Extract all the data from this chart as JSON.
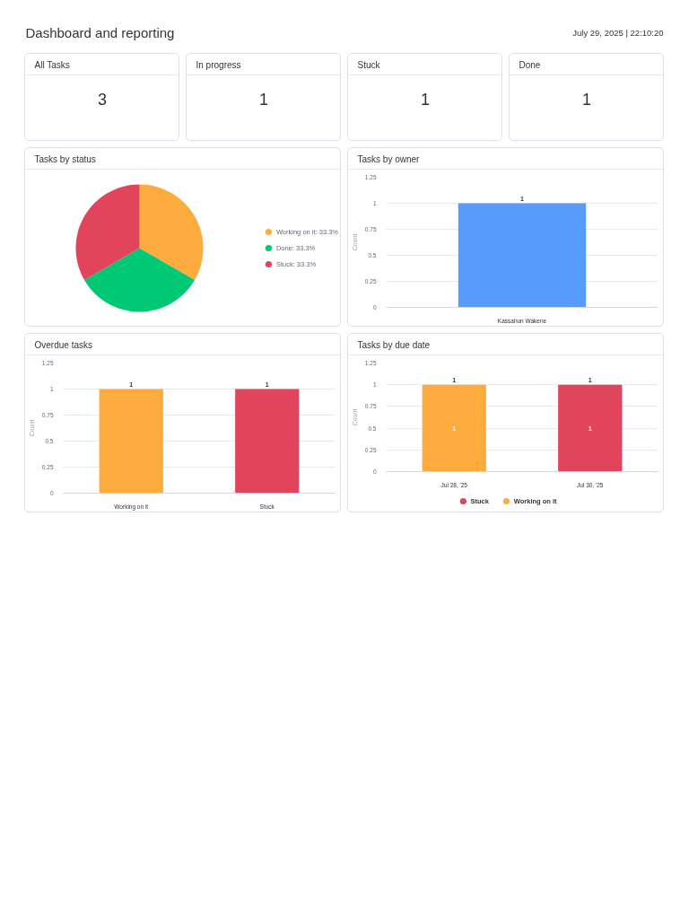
{
  "chart_data": [
    {
      "type": "other",
      "title": "Dashboard and reporting",
      "annotations": [
        "July 29, 2025 | 22:10:20"
      ]
    },
    {
      "type": "other",
      "title": "All Tasks",
      "annotations": [
        "3"
      ]
    },
    {
      "type": "other",
      "title": "In progress",
      "annotations": [
        "1"
      ]
    },
    {
      "type": "other",
      "title": "Stuck",
      "annotations": [
        "1"
      ]
    },
    {
      "type": "other",
      "title": "Done",
      "annotations": [
        "1"
      ]
    },
    {
      "type": "pie",
      "title": "Tasks by status",
      "categories": [
        "Working on it: 33.3%",
        "Done: 33.3%",
        "Stuck: 33.3%"
      ],
      "values": [
        33.3,
        33.3,
        33.3
      ],
      "colors": [
        "#fdab3d",
        "#00c875",
        "#e2445c"
      ],
      "legend": "right"
    },
    {
      "type": "bar",
      "title": "Tasks by owner",
      "categories": [
        "Kassahun Wakene"
      ],
      "values": [
        1
      ],
      "colors": [
        "#579bfc"
      ],
      "ylabel": "Count",
      "ylim": [
        0,
        1.25
      ],
      "yticks": [
        0,
        0.25,
        0.5,
        0.75,
        1,
        1.25
      ],
      "grid": "y",
      "data_labels": true
    },
    {
      "type": "bar",
      "title": "Overdue tasks",
      "categories": [
        "Working on it",
        "Stuck"
      ],
      "values": [
        1,
        1
      ],
      "colors": [
        "#fdab3d",
        "#e2445c"
      ],
      "ylabel": "Count",
      "ylim": [
        0,
        1.25
      ],
      "yticks": [
        0,
        0.25,
        0.5,
        0.75,
        1,
        1.25
      ],
      "grid": "y",
      "data_labels": true
    },
    {
      "type": "bar",
      "title": "Tasks by due date",
      "categories": [
        "Jul 28, '25",
        "Jul 30, '25"
      ],
      "stacked": true,
      "series": [
        {
          "name": "Stuck",
          "color": "#e2445c",
          "values": [
            null,
            1
          ]
        },
        {
          "name": "Working on it",
          "color": "#fdab3d",
          "values": [
            1,
            null
          ]
        }
      ],
      "totals": [
        "1",
        "1"
      ],
      "data_labels": true,
      "legend": "bottom",
      "ylabel": "Count",
      "ylim": [
        0,
        1.25
      ],
      "yticks": [
        0,
        0.25,
        0.5,
        0.75,
        1,
        1.25
      ],
      "grid": "y"
    }
  ]
}
